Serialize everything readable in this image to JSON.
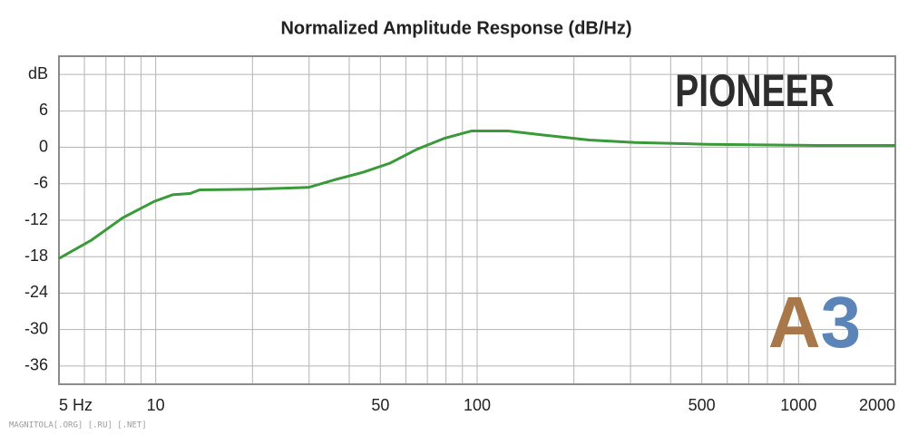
{
  "chart_data": {
    "type": "line",
    "title": "Normalized Amplitude Response (dB/Hz)",
    "x": [
      5,
      6.3,
      7.9,
      9.9,
      11.3,
      12.8,
      13.7,
      20.2,
      29.9,
      36.3,
      44.2,
      53.6,
      65.1,
      79.2,
      96.2,
      124.8,
      161.8,
      223,
      310,
      520,
      1137,
      2000
    ],
    "series": [
      {
        "name": "PIONEER",
        "color": "#3a9a3a",
        "values": [
          -18.3,
          -15.3,
          -11.6,
          -8.9,
          -7.8,
          -7.6,
          -7.0,
          -6.9,
          -6.6,
          -5.3,
          -4.1,
          -2.6,
          -0.3,
          1.5,
          2.7,
          2.7,
          2.0,
          1.2,
          0.8,
          0.5,
          0.3,
          0.3
        ]
      }
    ],
    "xscale": "log",
    "xlim": [
      5,
      2000
    ],
    "xticks": [
      {
        "value": 5,
        "label": "5 Hz"
      },
      10,
      50,
      100,
      500,
      1000,
      2000
    ],
    "xminor": [
      6,
      7,
      8,
      9,
      20,
      30,
      40,
      60,
      70,
      80,
      90,
      200,
      300,
      400,
      600,
      700,
      800,
      900
    ],
    "ylim": [
      -39,
      15
    ],
    "yticks": [
      -36,
      -30,
      -24,
      -18,
      -12,
      -6,
      0,
      6,
      {
        "value": 12,
        "label": "dB"
      }
    ],
    "grid": true,
    "annotations": [
      "PIONEER",
      "A3",
      "MAGNITOLA[.ORG] [.RU] [.NET]"
    ]
  }
}
